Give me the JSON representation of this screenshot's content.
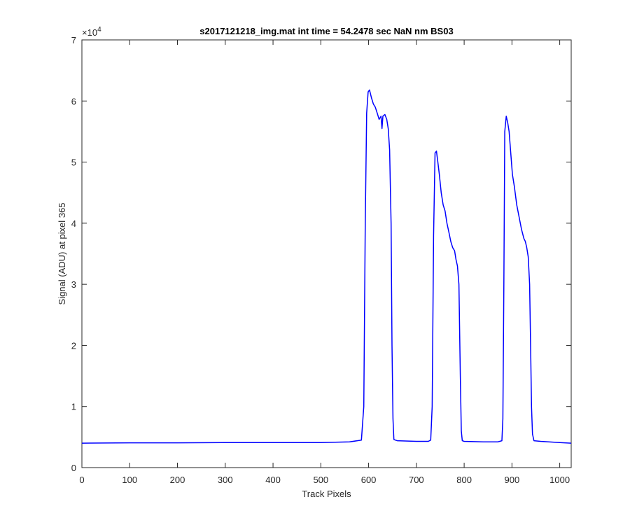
{
  "chart_data": {
    "type": "line",
    "title": "s2017121218_img.mat int time = 54.2478 sec  NaN nm BS03",
    "xlabel": "Track Pixels",
    "ylabel": "Signal (ADU) at pixel 365",
    "xlim": [
      0,
      1024
    ],
    "ylim": [
      0,
      70000
    ],
    "y_exponent_label": "×10",
    "y_exponent_power": "4",
    "x_ticks": [
      0,
      100,
      200,
      300,
      400,
      500,
      600,
      700,
      800,
      900,
      1000
    ],
    "x_tick_labels": [
      "0",
      "100",
      "200",
      "300",
      "400",
      "500",
      "600",
      "700",
      "800",
      "900",
      "1000"
    ],
    "y_ticks": [
      0,
      10000,
      20000,
      30000,
      40000,
      50000,
      60000,
      70000
    ],
    "y_tick_labels": [
      "0",
      "1",
      "2",
      "3",
      "4",
      "5",
      "6",
      "7"
    ],
    "grid": false,
    "box": true,
    "series": [
      {
        "color": "#0000ff",
        "x": [
          0,
          100,
          200,
          300,
          400,
          500,
          560,
          585,
          590,
          593,
          596,
          599,
          602,
          606,
          610,
          614,
          618,
          622,
          626,
          628,
          630,
          634,
          638,
          641,
          644,
          647,
          649,
          651,
          653,
          656,
          660,
          700,
          725,
          730,
          733,
          736,
          739,
          742,
          745,
          748,
          752,
          756,
          760,
          764,
          768,
          772,
          776,
          780,
          783,
          786,
          789,
          792,
          794,
          796,
          800,
          840,
          870,
          879,
          881,
          883,
          885,
          888,
          891,
          894,
          897,
          901,
          905,
          910,
          915,
          920,
          925,
          928,
          931,
          934,
          937,
          939,
          941,
          943,
          946,
          960,
          1000,
          1024
        ],
        "y": [
          4000,
          4050,
          4050,
          4100,
          4100,
          4100,
          4200,
          4500,
          10000,
          40000,
          58000,
          61500,
          61800,
          60500,
          59500,
          59000,
          58000,
          57000,
          57500,
          55500,
          57500,
          57800,
          57000,
          55500,
          52000,
          40000,
          20000,
          8000,
          4600,
          4500,
          4400,
          4300,
          4300,
          4500,
          10000,
          38000,
          51500,
          51800,
          50000,
          48000,
          45000,
          43000,
          42000,
          40000,
          38500,
          37000,
          36000,
          35500,
          34000,
          33000,
          30000,
          15000,
          6000,
          4400,
          4300,
          4200,
          4200,
          4400,
          8000,
          30000,
          55000,
          57500,
          56500,
          55000,
          52000,
          48000,
          46000,
          43000,
          41000,
          39000,
          37500,
          37000,
          36000,
          34500,
          30000,
          20000,
          10000,
          5500,
          4400,
          4300,
          4100,
          4000
        ]
      }
    ]
  }
}
